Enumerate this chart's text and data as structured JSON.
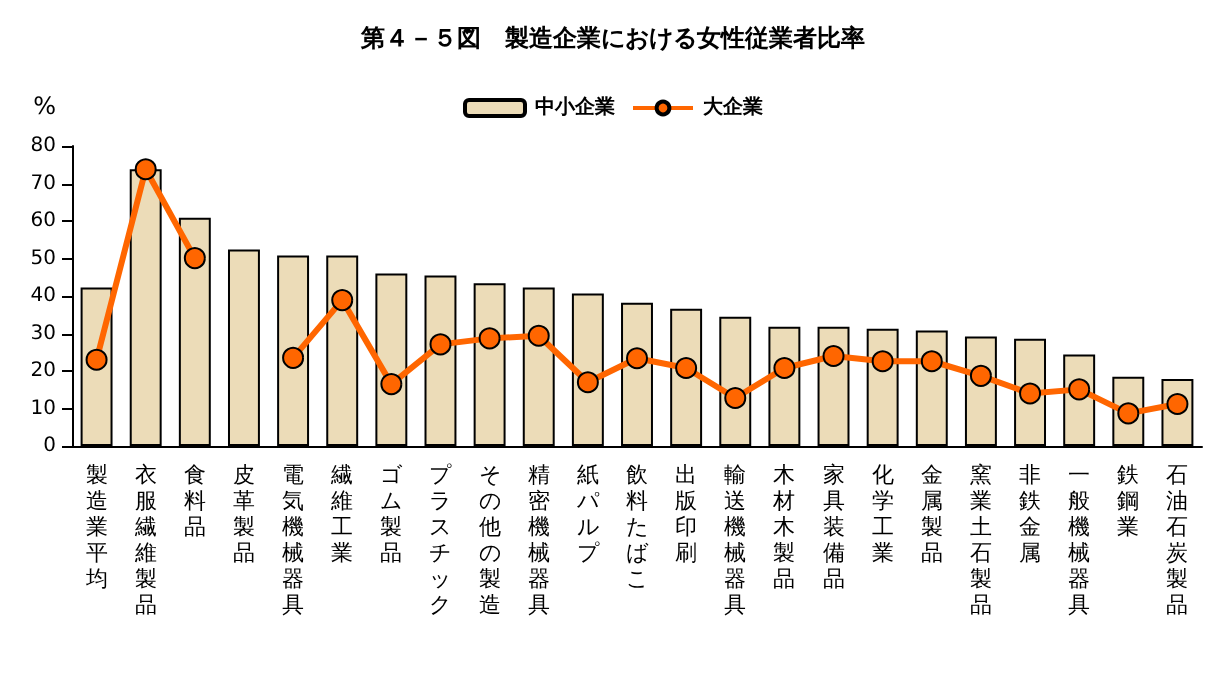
{
  "chart_data": {
    "type": "bar",
    "title": "第４－５図　製造企業における女性従業者比率",
    "ylabel": "%",
    "categories": [
      "製造業平均",
      "衣服繊維製品",
      "食料品",
      "皮革製品",
      "電気機械器具",
      "繊維工業",
      "ゴム製品",
      "プラスチック",
      "その他の製造",
      "精密機械器具",
      "紙パルプ",
      "飲料たばこ",
      "出版印刷",
      "輸送機械器具",
      "木材木製品",
      "家具装備品",
      "化学工業",
      "金属製品",
      "窯業土石製品",
      "非鉄金属",
      "一般機械器具",
      "鉄鋼業",
      "石油石炭製品"
    ],
    "series": [
      {
        "name": "中小企業",
        "color": "#ecdcb8",
        "values": [
          42.3,
          73.8,
          60.9,
          52.4,
          50.8,
          50.8,
          46.0,
          45.5,
          43.4,
          42.3,
          40.7,
          38.2,
          36.6,
          34.5,
          31.8,
          31.8,
          31.3,
          30.8,
          29.2,
          28.6,
          24.4,
          18.5,
          17.9
        ]
      },
      {
        "name": "大企業",
        "type": "line",
        "color": "#ff6600",
        "marker": "circle",
        "values": [
          23.0,
          73.8,
          50.1,
          null,
          23.5,
          38.9,
          16.5,
          27.1,
          28.7,
          29.4,
          17.0,
          23.4,
          20.8,
          12.8,
          20.8,
          24.0,
          22.6,
          22.6,
          18.7,
          14.0,
          15.1,
          8.7,
          11.2
        ]
      }
    ],
    "ylim": [
      0,
      80
    ],
    "yticks": [
      0,
      10,
      20,
      30,
      40,
      50,
      60,
      70,
      80
    ],
    "grid": false,
    "legend": "top"
  }
}
